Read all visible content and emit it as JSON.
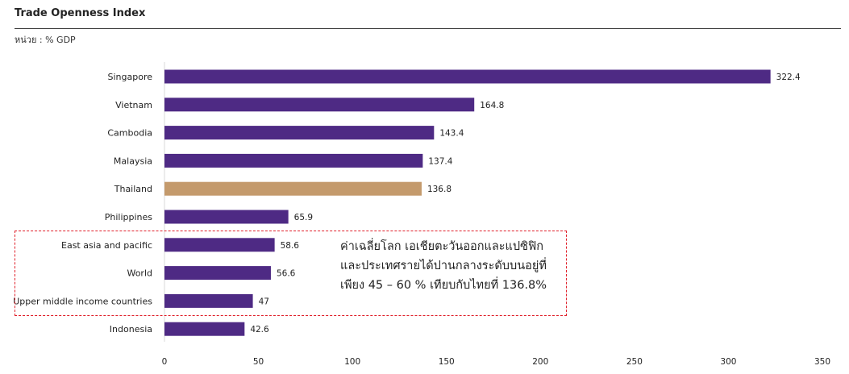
{
  "header": {
    "title": "Trade Openness Index",
    "unit_label": "หน่วย : % GDP"
  },
  "annotation": {
    "lines": [
      "ค่าเฉลี่ยโลก เอเชียตะวันออกและแปซิฟิก",
      "และประเทศรายได้ปานกลางระดับบนอยู่ที่",
      "เพียง 45 – 60 % เทียบกับไทยที่ 136.8%"
    ]
  },
  "colors": {
    "default_bar": "#4e2a84",
    "highlight_bar": "#c49a6c",
    "highlight_box_border": "#e0202a"
  },
  "chart_data": {
    "type": "bar",
    "orientation": "horizontal",
    "title": "Trade Openness Index",
    "subtitle": "หน่วย : % GDP",
    "xlabel": "",
    "ylabel": "",
    "xlim": [
      0,
      350
    ],
    "x_ticks": [
      0,
      50,
      100,
      150,
      200,
      250,
      300,
      350
    ],
    "grid": false,
    "legend": "none",
    "categories": [
      "Singapore",
      "Vietnam",
      "Cambodia",
      "Malaysia",
      "Thailand",
      "Philippines",
      "East asia and pacific",
      "World",
      "Upper middle income countries",
      "Indonesia"
    ],
    "values": [
      322.4,
      164.8,
      143.4,
      137.4,
      136.8,
      65.9,
      58.6,
      56.6,
      47,
      42.6
    ],
    "value_labels": [
      "322.4",
      "164.8",
      "143.4",
      "137.4",
      "136.8",
      "65.9",
      "58.6",
      "56.6",
      "47",
      "42.6"
    ],
    "highlighted_category": "Thailand",
    "boxed_categories": [
      "East asia and pacific",
      "World",
      "Upper middle income countries"
    ]
  }
}
